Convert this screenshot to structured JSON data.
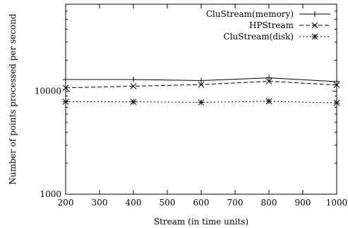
{
  "chart_data": {
    "type": "line",
    "title": "",
    "xlabel": "Stream (in time units)",
    "ylabel": "Number of points processed per second",
    "x_scale": "linear",
    "y_scale": "log",
    "xlim": [
      200,
      1000
    ],
    "ylim": [
      1000,
      70000
    ],
    "x_ticks": [
      200,
      300,
      400,
      500,
      600,
      700,
      800,
      900,
      1000
    ],
    "y_ticks": [
      1000,
      10000
    ],
    "grid": false,
    "legend_position": "top-right",
    "x": [
      200,
      400,
      600,
      800,
      1000
    ],
    "series": [
      {
        "name": "CluStream(memory)",
        "values": [
          13000,
          13000,
          12700,
          13500,
          12400
        ],
        "line_style": "solid",
        "marker": "plus"
      },
      {
        "name": "HPStream",
        "values": [
          10800,
          11200,
          11600,
          12500,
          11500
        ],
        "line_style": "dashed",
        "marker": "cross"
      },
      {
        "name": "CluStream(disk)",
        "values": [
          7900,
          7900,
          7800,
          8000,
          7700
        ],
        "line_style": "dotted",
        "marker": "star"
      }
    ]
  }
}
